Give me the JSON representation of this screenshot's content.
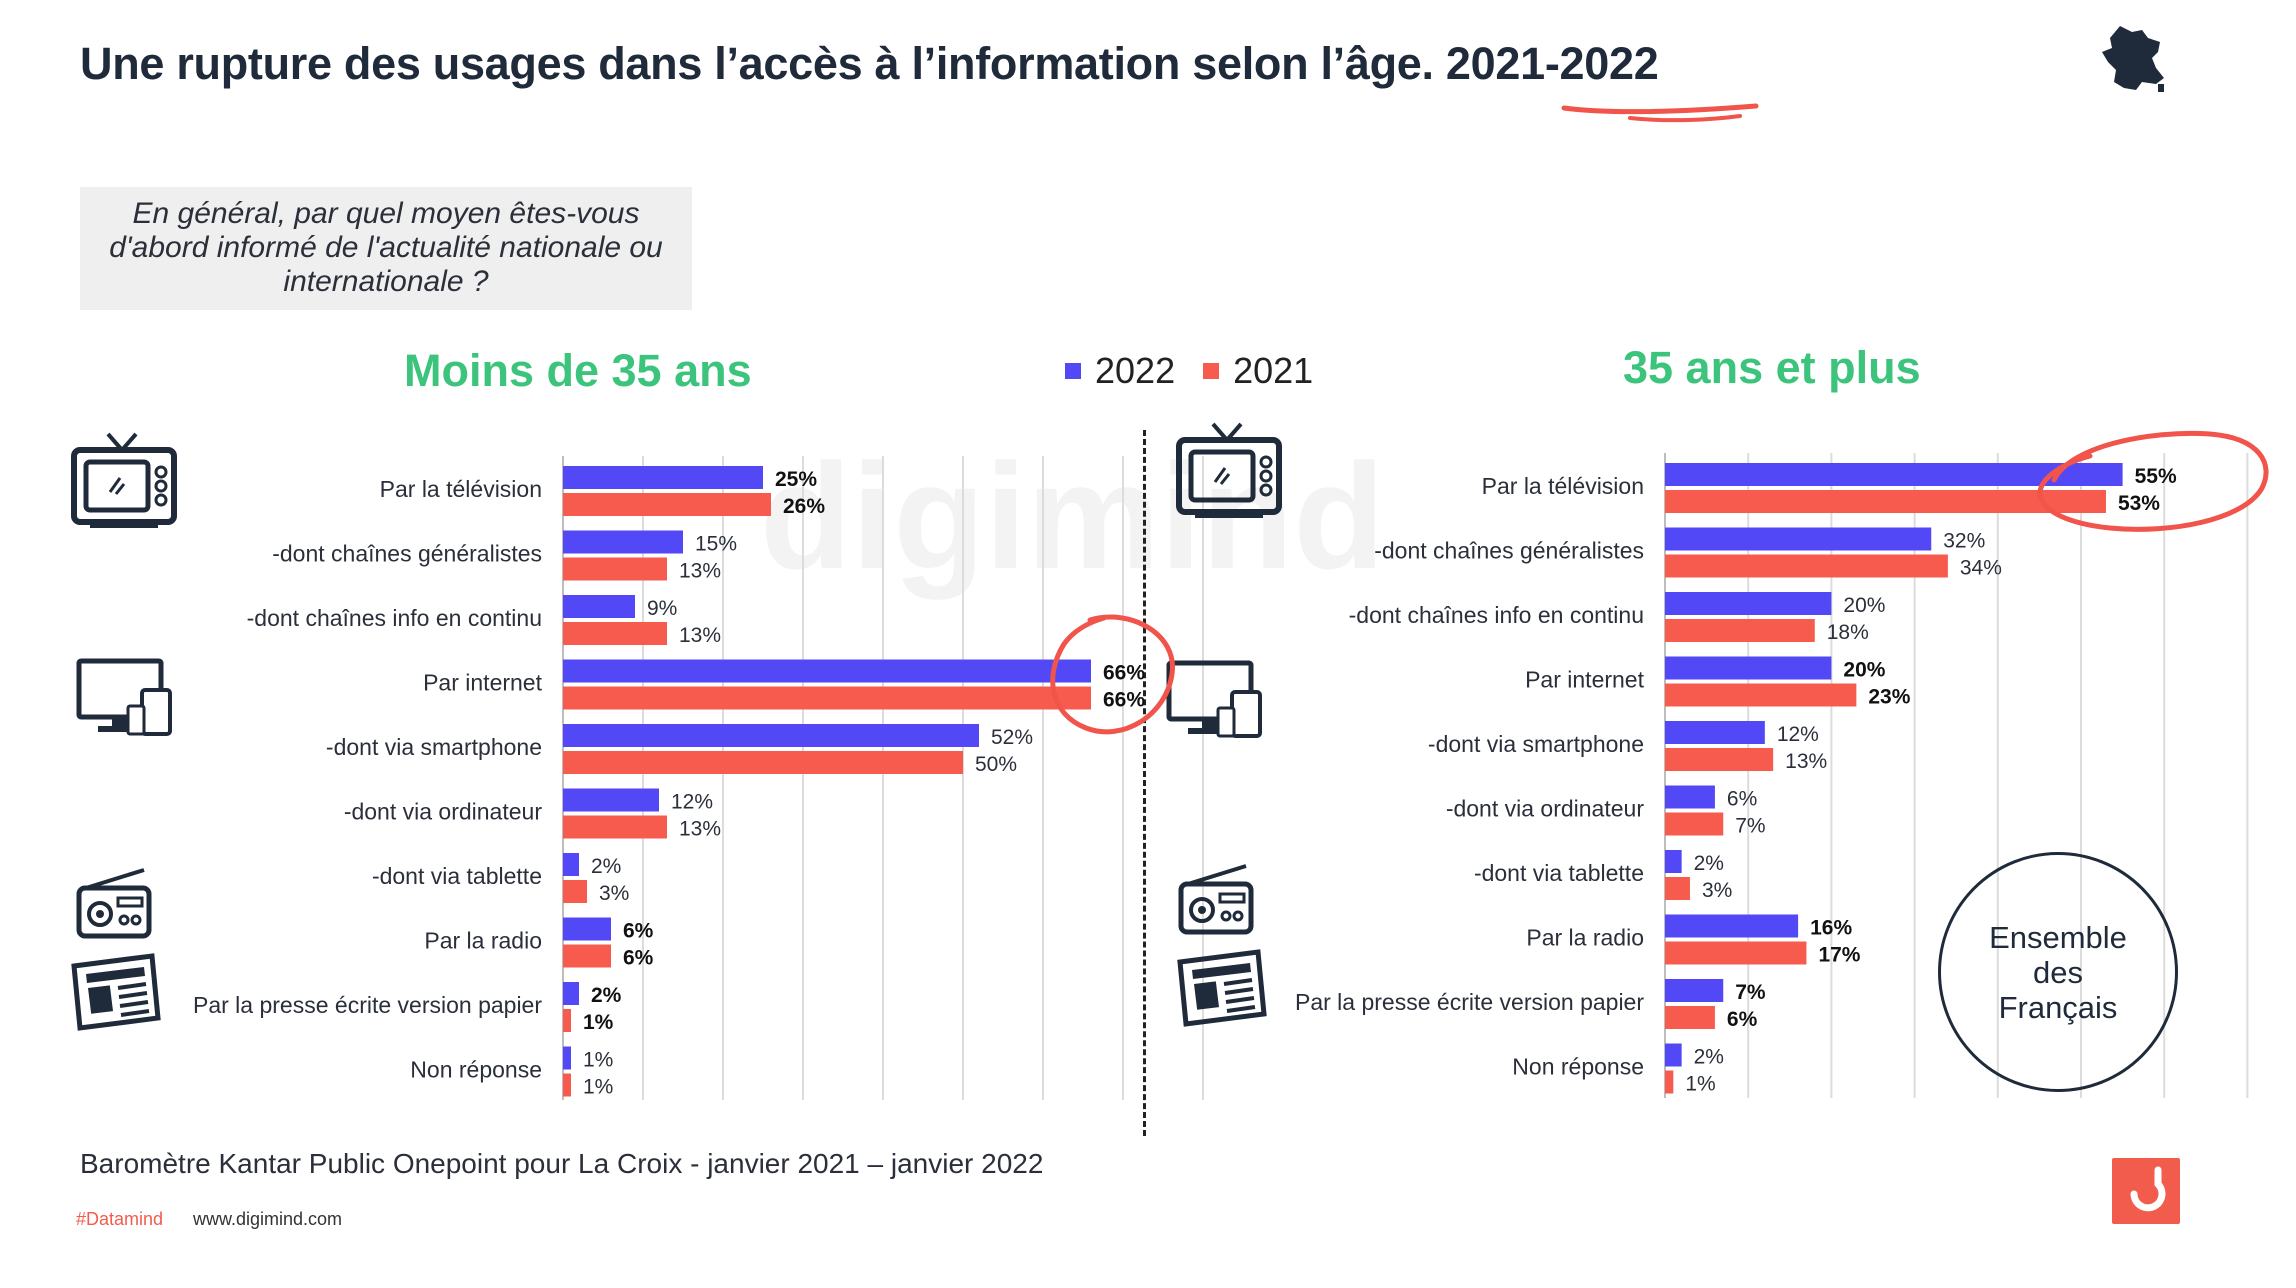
{
  "title": {
    "main": "Une rupture des usages dans l’accès à l’information selon l’âge.",
    "years": "2021-2022"
  },
  "question": "En général, par quel moyen êtes-vous d'abord informé de l'actualité nationale ou internationale ?",
  "legend": [
    {
      "label": "2022",
      "color": "#5348f5"
    },
    {
      "label": "2021",
      "color": "#f75b4e"
    }
  ],
  "watermark": "digimind",
  "ensemble_label": "Ensemble des Français",
  "source": "Baromètre Kantar Public Onepoint pour La Croix   - janvier 2021 – janvier 2022",
  "footer": {
    "tag": "#Datamind",
    "site": "www.digimind.com"
  },
  "icons": [
    "tv-icon",
    "computer-devices-icon",
    "radio-icon",
    "newspaper-icon",
    "france-map-icon",
    "digimind-logo-icon"
  ],
  "colors": {
    "series_2022": "#5348f5",
    "series_2021": "#f75b4e",
    "panel_title": "#3cc47c",
    "highlight": "#f0544a"
  },
  "chart_data": [
    {
      "type": "bar",
      "orientation": "horizontal",
      "title": "Moins de 35 ans",
      "categories": [
        "Par la télévision",
        "-dont chaînes généralistes",
        "-dont chaînes info en continu",
        "Par internet",
        "-dont via smartphone",
        "-dont via ordinateur",
        "-dont via tablette",
        "Par la radio",
        "Par la presse écrite version papier",
        "Non réponse"
      ],
      "bold": [
        true,
        false,
        false,
        true,
        false,
        false,
        false,
        true,
        true,
        false
      ],
      "series": [
        {
          "name": "2022",
          "values": [
            25,
            15,
            9,
            66,
            52,
            12,
            2,
            6,
            2,
            1
          ]
        },
        {
          "name": "2021",
          "values": [
            26,
            13,
            13,
            66,
            50,
            13,
            3,
            6,
            1,
            1
          ]
        }
      ],
      "value_labels": {
        "2022": [
          "25%",
          "15%",
          "9%",
          "66%",
          "52%",
          "12%",
          "2%",
          "6%",
          "2%",
          "1%"
        ],
        "2021": [
          "26%",
          "13%",
          "13%",
          "66%",
          "50%",
          "13%",
          "3%",
          "6%",
          "1%",
          "1%"
        ]
      },
      "xlim": [
        0,
        70
      ],
      "grid": true
    },
    {
      "type": "bar",
      "orientation": "horizontal",
      "title": "35 ans et plus",
      "categories": [
        "Par la télévision",
        "-dont chaînes généralistes",
        "-dont chaînes info en continu",
        "Par internet",
        "-dont via smartphone",
        "-dont via ordinateur",
        "-dont via tablette",
        "Par la radio",
        "Par la presse écrite version papier",
        "Non réponse"
      ],
      "bold": [
        true,
        false,
        false,
        true,
        false,
        false,
        false,
        true,
        true,
        false
      ],
      "series": [
        {
          "name": "2022",
          "values": [
            55,
            32,
            20,
            20,
            12,
            6,
            2,
            16,
            7,
            2
          ]
        },
        {
          "name": "2021",
          "values": [
            53,
            34,
            18,
            23,
            13,
            7,
            3,
            17,
            6,
            1
          ]
        }
      ],
      "value_labels": {
        "2022": [
          "55%",
          "32%",
          "20%",
          "20%",
          "12%",
          "6%",
          "2%",
          "16%",
          "7%",
          "2%"
        ],
        "2021": [
          "53%",
          "34%",
          "18%",
          "23%",
          "13%",
          "7%",
          "3%",
          "17%",
          "6%",
          "1%"
        ]
      },
      "xlim": [
        0,
        60
      ],
      "grid": true
    }
  ]
}
